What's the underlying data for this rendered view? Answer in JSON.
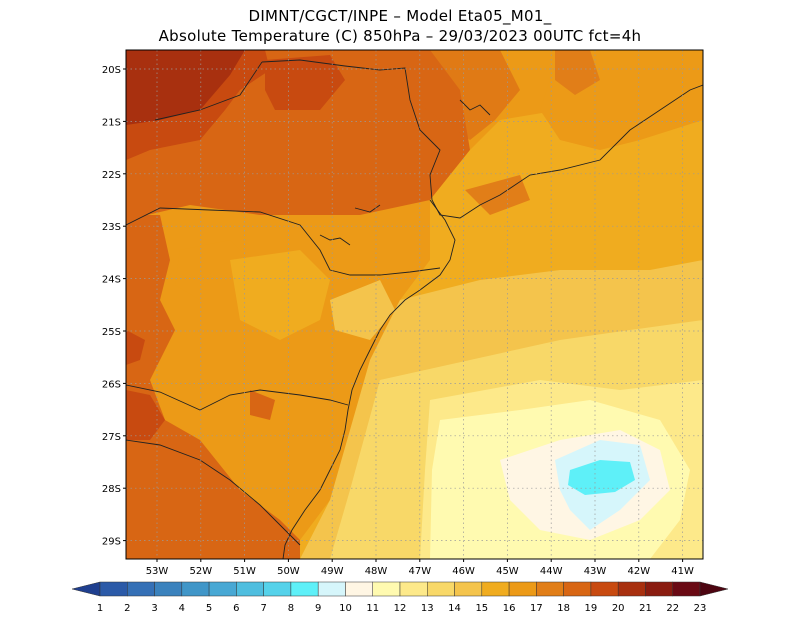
{
  "header": {
    "line1": "DIMNT/CGCT/INPE –  Model Eta05_M01_",
    "line2": "Absolute Temperature (C) 850hPa –  29/03/2023 00UTC fct=4h"
  },
  "map": {
    "lat_labels": [
      "20S",
      "21S",
      "22S",
      "23S",
      "24S",
      "25S",
      "26S",
      "27S",
      "28S",
      "29S"
    ],
    "lon_labels": [
      "53W",
      "52W",
      "51W",
      "50W",
      "49W",
      "48W",
      "47W",
      "46W",
      "45W",
      "44W",
      "43W",
      "42W",
      "41W"
    ],
    "gridlines": "dotted"
  },
  "colorbar": {
    "labels": [
      "1",
      "2",
      "3",
      "4",
      "5",
      "6",
      "7",
      "8",
      "9",
      "10",
      "11",
      "12",
      "13",
      "14",
      "15",
      "16",
      "17",
      "18",
      "19",
      "20",
      "21",
      "22",
      "23"
    ],
    "colors": [
      "#1f3f8f",
      "#2b5aa8",
      "#3570b6",
      "#3b82bd",
      "#4096c8",
      "#48a8d4",
      "#4fbedf",
      "#55d2ea",
      "#5ef0f8",
      "#d6f6fb",
      "#fff6e4",
      "#fffab0",
      "#fde98a",
      "#f8d868",
      "#f4c44c",
      "#f0ac1f",
      "#ec9a17",
      "#e17e18",
      "#d86614",
      "#c84a10",
      "#a8300f",
      "#8a1c10",
      "#6a0a14",
      "#4d0511"
    ],
    "units": "C"
  }
}
